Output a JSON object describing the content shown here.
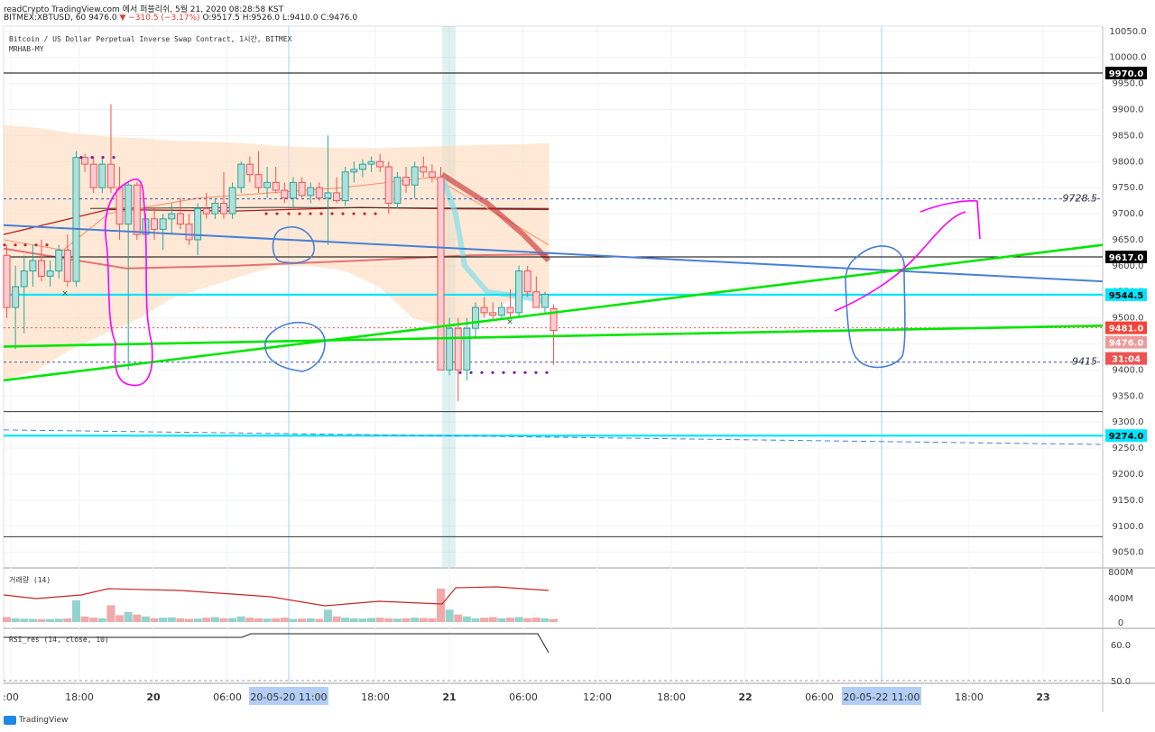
{
  "header": {
    "line1": "readCrypto TradingView.com 에서 퍼블리쉬, 5월 21, 2020 08:28:58 KST",
    "line2_prefix": "BITMEX:XBTUSD, 60 9476.0",
    "change": "▼ −310.5 (−3.17%)",
    "ohlc": "O:9517.5 H:9526.0 L:9410.0 C:9476.0"
  },
  "main": {
    "title": "Bitcoin / US Dollar Perpetual Inverse Swap Contract, 1시간, BITMEX",
    "subtitle": "MRHAB-MY"
  },
  "volume_panel": {
    "title": "거래량 (14)"
  },
  "rsi_panel": {
    "title": "RSI_res (14, close, 10)"
  },
  "footer": {
    "logo_text": "TradingView"
  },
  "colors": {
    "up": "#26a69a",
    "down": "#ef5350",
    "cyan": "#00e5ff",
    "green": "#00e600",
    "blue": "#4a7fd4",
    "magenta": "#ff00ff",
    "band": "#ffd7b5",
    "dark_red": "#c62828"
  },
  "chart_data": {
    "type": "candlestick",
    "price_axis": {
      "range": [
        9020,
        10060
      ],
      "ticks": [
        10050,
        10000,
        9950,
        9900,
        9850,
        9800,
        9750,
        9700,
        9650,
        9600,
        9550,
        9500,
        9450,
        9400,
        9350,
        9300,
        9250,
        9200,
        9150,
        9100,
        9050
      ]
    },
    "time_axis": {
      "labels": [
        ":00",
        "18:00",
        "20",
        "06:00",
        "20-05-20  11:00",
        "18:00",
        "21",
        "06:00",
        "12:00",
        "18:00",
        "22",
        "06:00",
        "20-05-22  11:00",
        "18:00",
        "23"
      ],
      "highlighted": [
        "20-05-20  11:00",
        "20-05-22  11:00"
      ]
    },
    "candles": [
      {
        "o": 9620,
        "h": 9640,
        "l": 9500,
        "c": 9520
      },
      {
        "o": 9520,
        "h": 9600,
        "l": 9440,
        "c": 9560
      },
      {
        "o": 9560,
        "h": 9620,
        "l": 9470,
        "c": 9590
      },
      {
        "o": 9590,
        "h": 9640,
        "l": 9560,
        "c": 9610
      },
      {
        "o": 9610,
        "h": 9650,
        "l": 9570,
        "c": 9580
      },
      {
        "o": 9580,
        "h": 9610,
        "l": 9560,
        "c": 9590
      },
      {
        "o": 9590,
        "h": 9640,
        "l": 9575,
        "c": 9630
      },
      {
        "o": 9630,
        "h": 9660,
        "l": 9560,
        "c": 9570
      },
      {
        "o": 9570,
        "h": 9820,
        "l": 9560,
        "c": 9808
      },
      {
        "o": 9808,
        "h": 9815,
        "l": 9780,
        "c": 9795
      },
      {
        "o": 9795,
        "h": 9810,
        "l": 9740,
        "c": 9750
      },
      {
        "o": 9750,
        "h": 9805,
        "l": 9740,
        "c": 9795
      },
      {
        "o": 9795,
        "h": 9910,
        "l": 9740,
        "c": 9750
      },
      {
        "o": 9750,
        "h": 9790,
        "l": 9650,
        "c": 9680
      },
      {
        "o": 9680,
        "h": 9760,
        "l": 9400,
        "c": 9755
      },
      {
        "o": 9755,
        "h": 9760,
        "l": 9650,
        "c": 9660
      },
      {
        "o": 9660,
        "h": 9700,
        "l": 9640,
        "c": 9690
      },
      {
        "o": 9690,
        "h": 9710,
        "l": 9650,
        "c": 9670
      },
      {
        "o": 9670,
        "h": 9700,
        "l": 9630,
        "c": 9690
      },
      {
        "o": 9690,
        "h": 9720,
        "l": 9660,
        "c": 9700
      },
      {
        "o": 9700,
        "h": 9730,
        "l": 9670,
        "c": 9680
      },
      {
        "o": 9680,
        "h": 9700,
        "l": 9640,
        "c": 9650
      },
      {
        "o": 9650,
        "h": 9720,
        "l": 9620,
        "c": 9710
      },
      {
        "o": 9710,
        "h": 9740,
        "l": 9690,
        "c": 9700
      },
      {
        "o": 9700,
        "h": 9730,
        "l": 9690,
        "c": 9720
      },
      {
        "o": 9720,
        "h": 9780,
        "l": 9690,
        "c": 9700
      },
      {
        "o": 9700,
        "h": 9760,
        "l": 9690,
        "c": 9750
      },
      {
        "o": 9750,
        "h": 9800,
        "l": 9740,
        "c": 9795
      },
      {
        "o": 9795,
        "h": 9810,
        "l": 9760,
        "c": 9775
      },
      {
        "o": 9775,
        "h": 9820,
        "l": 9740,
        "c": 9750
      },
      {
        "o": 9750,
        "h": 9790,
        "l": 9730,
        "c": 9760
      },
      {
        "o": 9760,
        "h": 9790,
        "l": 9740,
        "c": 9745
      },
      {
        "o": 9745,
        "h": 9760,
        "l": 9720,
        "c": 9730
      },
      {
        "o": 9730,
        "h": 9770,
        "l": 9710,
        "c": 9760
      },
      {
        "o": 9760,
        "h": 9770,
        "l": 9730,
        "c": 9735
      },
      {
        "o": 9735,
        "h": 9760,
        "l": 9720,
        "c": 9750
      },
      {
        "o": 9750,
        "h": 9760,
        "l": 9725,
        "c": 9730
      },
      {
        "o": 9730,
        "h": 9850,
        "l": 9640,
        "c": 9740
      },
      {
        "o": 9740,
        "h": 9770,
        "l": 9720,
        "c": 9725
      },
      {
        "o": 9725,
        "h": 9790,
        "l": 9715,
        "c": 9780
      },
      {
        "o": 9780,
        "h": 9800,
        "l": 9760,
        "c": 9785
      },
      {
        "o": 9785,
        "h": 9805,
        "l": 9770,
        "c": 9795
      },
      {
        "o": 9795,
        "h": 9810,
        "l": 9780,
        "c": 9800
      },
      {
        "o": 9800,
        "h": 9815,
        "l": 9780,
        "c": 9790
      },
      {
        "o": 9790,
        "h": 9800,
        "l": 9700,
        "c": 9720
      },
      {
        "o": 9720,
        "h": 9780,
        "l": 9710,
        "c": 9770
      },
      {
        "o": 9770,
        "h": 9790,
        "l": 9740,
        "c": 9755
      },
      {
        "o": 9755,
        "h": 9800,
        "l": 9730,
        "c": 9790
      },
      {
        "o": 9790,
        "h": 9810,
        "l": 9770,
        "c": 9780
      },
      {
        "o": 9780,
        "h": 9795,
        "l": 9760,
        "c": 9770
      },
      {
        "o": 9770,
        "h": 9790,
        "l": 9400,
        "c": 9400
      },
      {
        "o": 9400,
        "h": 9500,
        "l": 9390,
        "c": 9480
      },
      {
        "o": 9480,
        "h": 9500,
        "l": 9340,
        "c": 9400
      },
      {
        "o": 9400,
        "h": 9500,
        "l": 9380,
        "c": 9480
      },
      {
        "o": 9480,
        "h": 9530,
        "l": 9460,
        "c": 9520
      },
      {
        "o": 9520,
        "h": 9540,
        "l": 9500,
        "c": 9510
      },
      {
        "o": 9510,
        "h": 9530,
        "l": 9495,
        "c": 9505
      },
      {
        "o": 9505,
        "h": 9530,
        "l": 9500,
        "c": 9520
      },
      {
        "o": 9520,
        "h": 9555,
        "l": 9500,
        "c": 9510
      },
      {
        "o": 9510,
        "h": 9600,
        "l": 9500,
        "c": 9590
      },
      {
        "o": 9590,
        "h": 9600,
        "l": 9540,
        "c": 9550
      },
      {
        "o": 9550,
        "h": 9580,
        "l": 9520,
        "c": 9520
      },
      {
        "o": 9520,
        "h": 9550,
        "l": 9510,
        "c": 9545
      },
      {
        "o": 9517.5,
        "h": 9526,
        "l": 9410,
        "c": 9476
      }
    ],
    "horizontal_lines": [
      {
        "price": 9970.0,
        "label": "9970.0",
        "style": "solid",
        "color": "#000000"
      },
      {
        "price": 9617.0,
        "label": "9617.0",
        "style": "solid",
        "color": "#000000"
      },
      {
        "price": 9544.5,
        "label": "9544.5",
        "style": "solid",
        "color": "#00e5ff"
      },
      {
        "price": 9274.0,
        "label": "9274.0",
        "style": "solid",
        "color": "#00e5ff"
      },
      {
        "price": 9728.5,
        "label": "9728.5",
        "style": "dotted",
        "color": "#3f51b5"
      },
      {
        "price": 9415,
        "label": "9415",
        "style": "dotted",
        "color": "#3f51b5"
      },
      {
        "price": 9320,
        "label": "",
        "style": "solid",
        "color": "#333333"
      },
      {
        "price": 9080,
        "label": "",
        "style": "solid",
        "color": "#333333"
      }
    ],
    "price_tags": [
      {
        "label": "9481.0",
        "bg": "#f44336"
      },
      {
        "label": "9476.0",
        "bg": "#ef9a9a"
      },
      {
        "label": "31:04",
        "bg": "#ef5350"
      }
    ],
    "volume_axis": {
      "ticks": [
        "800M",
        "400M",
        "0"
      ]
    },
    "volumes": [
      80,
      60,
      55,
      50,
      45,
      48,
      52,
      58,
      350,
      90,
      70,
      60,
      270,
      110,
      160,
      120,
      90,
      60,
      70,
      75,
      60,
      50,
      55,
      70,
      80,
      60,
      65,
      90,
      70,
      60,
      55,
      60,
      70,
      50,
      55,
      60,
      50,
      200,
      90,
      70,
      60,
      55,
      65,
      70,
      60,
      55,
      60,
      70,
      65,
      60,
      540,
      200,
      120,
      90,
      60,
      70,
      80,
      60,
      70,
      80,
      60,
      70,
      60,
      50
    ],
    "rsi_axis": {
      "ticks": [
        "60.0",
        "50.0"
      ]
    },
    "rsi_level_labels": []
  }
}
